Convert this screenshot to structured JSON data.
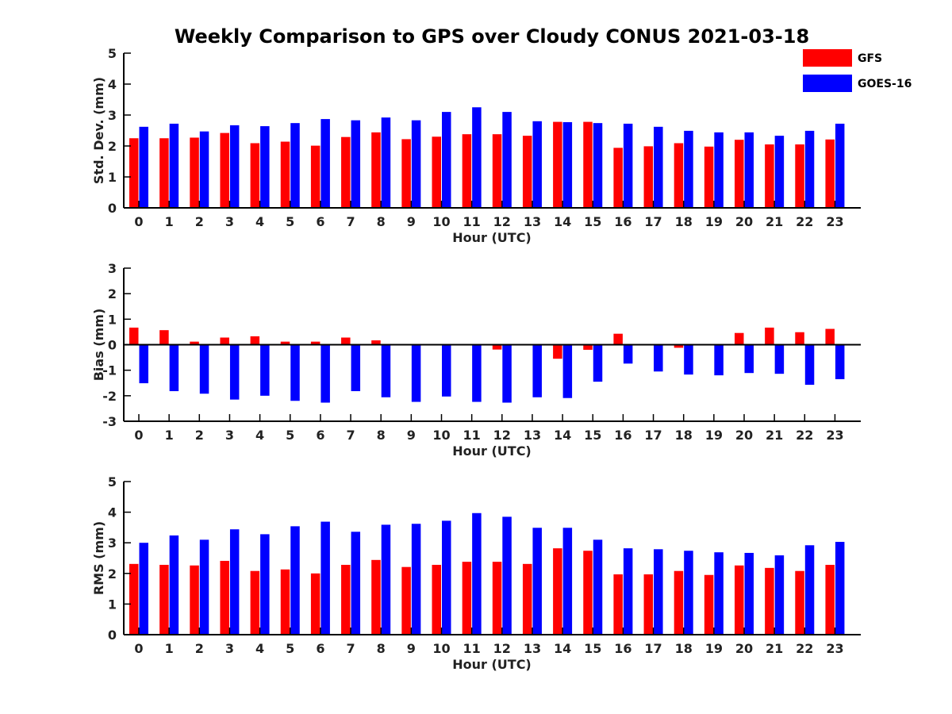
{
  "title": "Weekly Comparison to GPS over Cloudy CONUS 2021-03-18",
  "colors": {
    "GFS": "#ff0000",
    "GOES-16": "#0000ff",
    "axis": "#000000"
  },
  "legend": {
    "placement": "top-right",
    "entries": [
      "GFS",
      "GOES-16"
    ]
  },
  "chart_data": [
    {
      "type": "bar",
      "ylabel": "Std. Dev. (mm)",
      "xlabel": "Hour (UTC)",
      "ylim": [
        0,
        5
      ],
      "yticks": [
        0,
        1,
        2,
        3,
        4,
        5
      ],
      "categories": [
        "0",
        "1",
        "2",
        "3",
        "4",
        "5",
        "6",
        "7",
        "8",
        "9",
        "10",
        "11",
        "12",
        "13",
        "14",
        "15",
        "16",
        "17",
        "18",
        "19",
        "20",
        "21",
        "22",
        "23"
      ],
      "series": [
        {
          "name": "GFS",
          "values": [
            2.25,
            2.25,
            2.27,
            2.42,
            2.09,
            2.14,
            2.01,
            2.29,
            2.44,
            2.22,
            2.3,
            2.38,
            2.38,
            2.33,
            2.78,
            2.78,
            1.94,
            1.99,
            2.09,
            1.98,
            2.2,
            2.05,
            2.05,
            2.21
          ]
        },
        {
          "name": "GOES-16",
          "values": [
            2.62,
            2.72,
            2.47,
            2.67,
            2.64,
            2.74,
            2.87,
            2.83,
            2.92,
            2.83,
            3.1,
            3.25,
            3.1,
            2.8,
            2.77,
            2.74,
            2.72,
            2.62,
            2.49,
            2.44,
            2.44,
            2.33,
            2.49,
            2.72
          ]
        }
      ]
    },
    {
      "type": "bar",
      "ylabel": "Bias (mm)",
      "xlabel": "Hour (UTC)",
      "ylim": [
        -3,
        3
      ],
      "yticks": [
        -3,
        -2,
        -1,
        0,
        1,
        2,
        3
      ],
      "zero_line": true,
      "categories": [
        "0",
        "1",
        "2",
        "3",
        "4",
        "5",
        "6",
        "7",
        "8",
        "9",
        "10",
        "11",
        "12",
        "13",
        "14",
        "15",
        "16",
        "17",
        "18",
        "19",
        "20",
        "21",
        "22",
        "23"
      ],
      "series": [
        {
          "name": "GFS",
          "values": [
            0.67,
            0.57,
            0.12,
            0.28,
            0.33,
            0.12,
            0.12,
            0.28,
            0.17,
            -0.03,
            0.03,
            0.0,
            -0.19,
            -0.03,
            -0.55,
            -0.2,
            0.43,
            0.0,
            -0.12,
            0.03,
            0.46,
            0.67,
            0.49,
            0.62
          ]
        },
        {
          "name": "GOES-16",
          "values": [
            -1.51,
            -1.82,
            -1.92,
            -2.15,
            -2.0,
            -2.2,
            -2.27,
            -1.82,
            -2.06,
            -2.24,
            -2.03,
            -2.24,
            -2.27,
            -2.06,
            -2.09,
            -1.45,
            -0.74,
            -1.05,
            -1.17,
            -1.2,
            -1.11,
            -1.14,
            -1.57,
            -1.35
          ]
        }
      ]
    },
    {
      "type": "bar",
      "ylabel": "RMS (mm)",
      "xlabel": "Hour (UTC)",
      "ylim": [
        0,
        5
      ],
      "yticks": [
        0,
        1,
        2,
        3,
        4,
        5
      ],
      "categories": [
        "0",
        "1",
        "2",
        "3",
        "4",
        "5",
        "6",
        "7",
        "8",
        "9",
        "10",
        "11",
        "12",
        "13",
        "14",
        "15",
        "16",
        "17",
        "18",
        "19",
        "20",
        "21",
        "22",
        "23"
      ],
      "series": [
        {
          "name": "GFS",
          "values": [
            2.31,
            2.28,
            2.26,
            2.41,
            2.08,
            2.13,
            2.0,
            2.28,
            2.44,
            2.21,
            2.28,
            2.38,
            2.38,
            2.31,
            2.82,
            2.74,
            1.97,
            1.97,
            2.08,
            1.95,
            2.26,
            2.18,
            2.08,
            2.28
          ]
        },
        {
          "name": "GOES-16",
          "values": [
            3.0,
            3.24,
            3.1,
            3.44,
            3.28,
            3.54,
            3.69,
            3.36,
            3.59,
            3.62,
            3.72,
            3.97,
            3.85,
            3.49,
            3.49,
            3.1,
            2.82,
            2.79,
            2.74,
            2.69,
            2.67,
            2.59,
            2.92,
            3.03
          ]
        }
      ]
    }
  ]
}
